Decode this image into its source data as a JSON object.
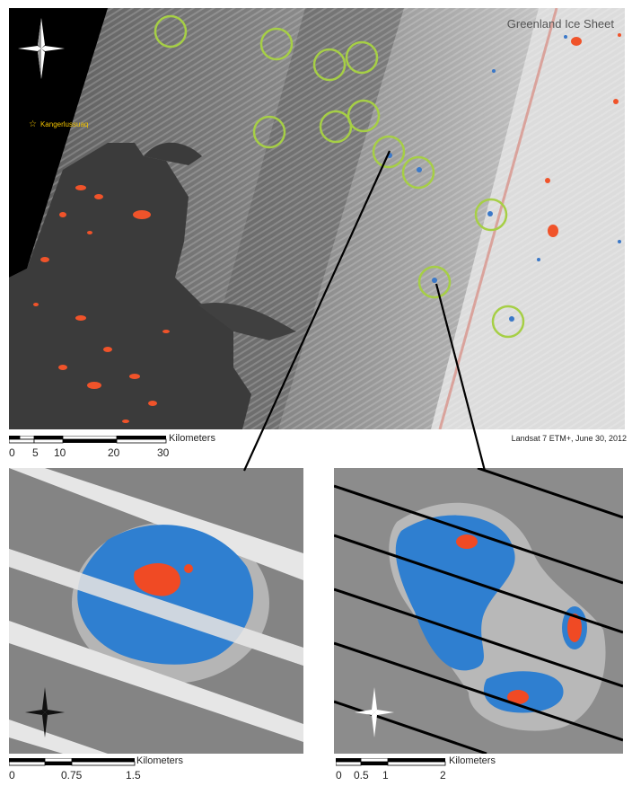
{
  "main_map": {
    "title": "Greenland Ice Sheet",
    "place_label": "Kangerlussuaq",
    "credit": "Landsat 7 ETM+, June 30, 2012",
    "scalebar": {
      "unit": "Kilometers",
      "ticks": [
        "0",
        "5",
        "10",
        "20",
        "30"
      ]
    },
    "compass_icon": "compass-rose-icon"
  },
  "inset_left": {
    "scalebar": {
      "unit": "Kilometers",
      "ticks": [
        "0",
        "0.75",
        "1.5"
      ]
    },
    "compass_icon": "compass-rose-icon"
  },
  "inset_right": {
    "scalebar": {
      "unit": "Kilometers",
      "ticks": [
        "0",
        "0.5",
        "1",
        "2"
      ]
    },
    "compass_icon": "compass-rose-icon"
  },
  "colors": {
    "lake_circle": "#9ccc3c",
    "lake_water": "#2f7fd0",
    "lake_red": "#f04a24",
    "ice": "#c9c9c9",
    "land": "#3a3a3a"
  }
}
